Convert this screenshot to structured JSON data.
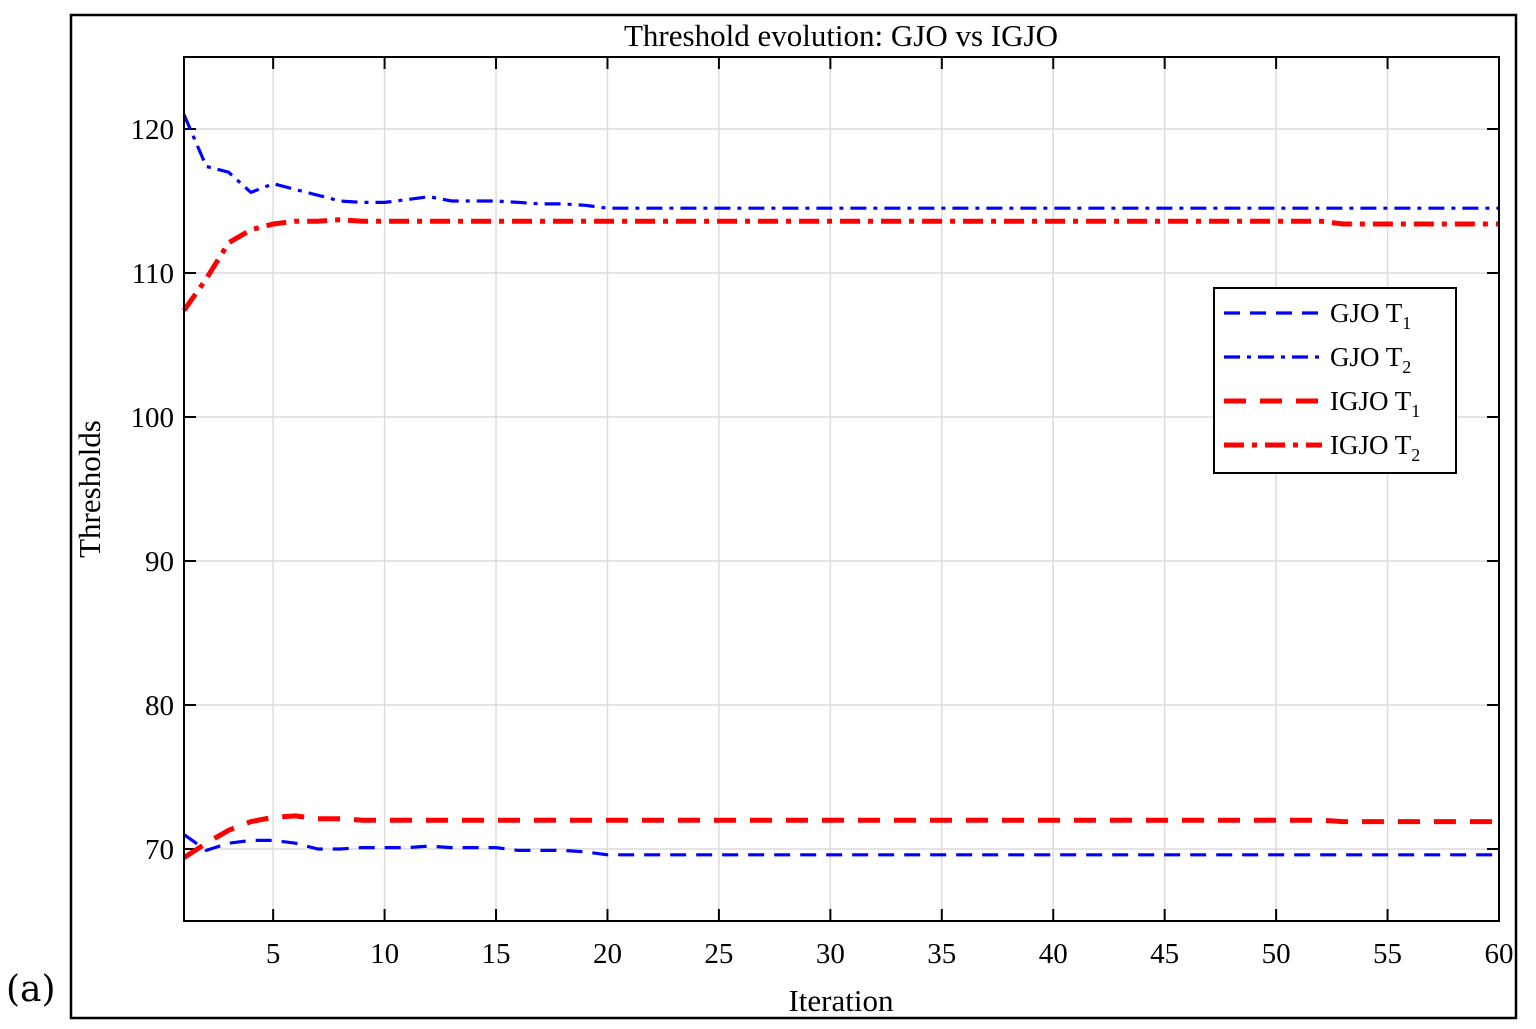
{
  "panel_label": "(a)",
  "chart_data": {
    "type": "line",
    "title": "Threshold evolution: GJO vs IGJO",
    "xlabel": "Iteration",
    "ylabel": "Thresholds",
    "xlim": [
      1,
      60
    ],
    "ylim": [
      65,
      125
    ],
    "xticks": [
      5,
      10,
      15,
      20,
      25,
      30,
      35,
      40,
      45,
      50,
      55,
      60
    ],
    "yticks": [
      70,
      80,
      90,
      100,
      110,
      120
    ],
    "grid": true,
    "legend_position": "right",
    "series": [
      {
        "name": "GJO",
        "subscript": "1",
        "label_sep": "T",
        "color": "#0000ff",
        "style": "dashed",
        "points": [
          [
            1,
            71.0
          ],
          [
            2,
            69.9
          ],
          [
            3,
            70.4
          ],
          [
            4,
            70.6
          ],
          [
            5,
            70.6
          ],
          [
            6,
            70.4
          ],
          [
            7,
            70.0
          ],
          [
            8,
            70.0
          ],
          [
            9,
            70.1
          ],
          [
            10,
            70.1
          ],
          [
            11,
            70.1
          ],
          [
            12,
            70.2
          ],
          [
            13,
            70.1
          ],
          [
            14,
            70.1
          ],
          [
            15,
            70.1
          ],
          [
            16,
            69.9
          ],
          [
            17,
            69.9
          ],
          [
            18,
            69.9
          ],
          [
            19,
            69.8
          ],
          [
            20,
            69.6
          ],
          [
            25,
            69.6
          ],
          [
            30,
            69.6
          ],
          [
            35,
            69.6
          ],
          [
            40,
            69.6
          ],
          [
            45,
            69.6
          ],
          [
            50,
            69.6
          ],
          [
            55,
            69.6
          ],
          [
            60,
            69.6
          ]
        ]
      },
      {
        "name": "GJO",
        "subscript": "2",
        "label_sep": "T",
        "color": "#0000ff",
        "style": "dashdot",
        "points": [
          [
            1,
            121.0
          ],
          [
            2,
            117.4
          ],
          [
            3,
            117.0
          ],
          [
            4,
            115.6
          ],
          [
            5,
            116.2
          ],
          [
            6,
            115.8
          ],
          [
            7,
            115.4
          ],
          [
            8,
            115.0
          ],
          [
            9,
            114.9
          ],
          [
            10,
            114.9
          ],
          [
            11,
            115.1
          ],
          [
            12,
            115.3
          ],
          [
            13,
            115.0
          ],
          [
            14,
            115.0
          ],
          [
            15,
            115.0
          ],
          [
            16,
            114.9
          ],
          [
            17,
            114.8
          ],
          [
            18,
            114.8
          ],
          [
            19,
            114.7
          ],
          [
            20,
            114.5
          ],
          [
            25,
            114.5
          ],
          [
            30,
            114.5
          ],
          [
            35,
            114.5
          ],
          [
            40,
            114.5
          ],
          [
            45,
            114.5
          ],
          [
            50,
            114.5
          ],
          [
            55,
            114.5
          ],
          [
            60,
            114.5
          ]
        ]
      },
      {
        "name": "IGJO",
        "subscript": "1",
        "label_sep": "T",
        "color": "#ff0000",
        "style": "dashed",
        "points": [
          [
            1,
            69.4
          ],
          [
            2,
            70.4
          ],
          [
            3,
            71.3
          ],
          [
            4,
            71.9
          ],
          [
            5,
            72.2
          ],
          [
            6,
            72.3
          ],
          [
            7,
            72.1
          ],
          [
            8,
            72.1
          ],
          [
            9,
            72.0
          ],
          [
            10,
            72.0
          ],
          [
            15,
            72.0
          ],
          [
            20,
            72.0
          ],
          [
            25,
            72.0
          ],
          [
            30,
            72.0
          ],
          [
            35,
            72.0
          ],
          [
            40,
            72.0
          ],
          [
            45,
            72.0
          ],
          [
            50,
            72.0
          ],
          [
            52,
            72.0
          ],
          [
            53,
            71.9
          ],
          [
            55,
            71.9
          ],
          [
            60,
            71.9
          ]
        ]
      },
      {
        "name": "IGJO",
        "subscript": "2",
        "label_sep": "T",
        "color": "#ff0000",
        "style": "dashdot",
        "points": [
          [
            1,
            107.4
          ],
          [
            2,
            109.6
          ],
          [
            3,
            112.1
          ],
          [
            4,
            113.0
          ],
          [
            5,
            113.4
          ],
          [
            6,
            113.6
          ],
          [
            7,
            113.6
          ],
          [
            8,
            113.7
          ],
          [
            9,
            113.6
          ],
          [
            10,
            113.6
          ],
          [
            15,
            113.6
          ],
          [
            20,
            113.6
          ],
          [
            25,
            113.6
          ],
          [
            30,
            113.6
          ],
          [
            35,
            113.6
          ],
          [
            40,
            113.6
          ],
          [
            45,
            113.6
          ],
          [
            50,
            113.6
          ],
          [
            52,
            113.6
          ],
          [
            53,
            113.4
          ],
          [
            55,
            113.4
          ],
          [
            60,
            113.4
          ]
        ]
      }
    ]
  }
}
